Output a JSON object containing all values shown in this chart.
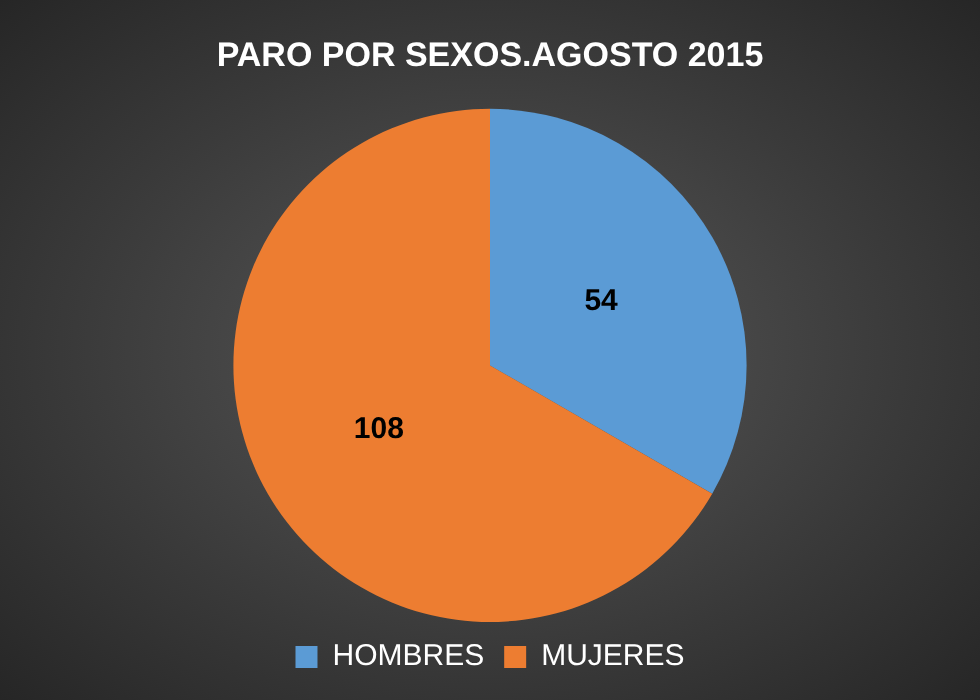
{
  "chart_data": {
    "type": "pie",
    "title": "PARO POR SEXOS.AGOSTO 2015",
    "categories": [
      "HOMBRES",
      "MUJERES"
    ],
    "values": [
      54,
      108
    ],
    "colors": [
      "#5b9bd5",
      "#ed7d31"
    ],
    "data_labels": true,
    "legend": "bottom"
  }
}
